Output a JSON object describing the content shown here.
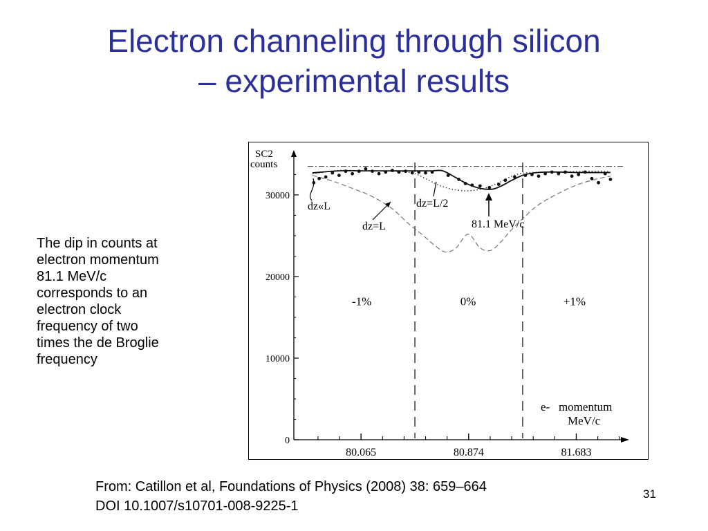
{
  "slide": {
    "title_line1": "Electron channeling through silicon",
    "title_line2": "– experimental results",
    "note_lines": [
      "The dip in counts at",
      "electron momentum",
      "81.1 MeV/c",
      "corresponds to an",
      "electron clock",
      "frequency of two",
      "times the de Broglie",
      "frequency"
    ],
    "citation_line1": "From: Catillon et al, Foundations of Physics (2008) 38: 659–664",
    "citation_line2": "DOI 10.1007/s10701-008-9225-1",
    "page_number": "31"
  },
  "chart_data": {
    "type": "line",
    "ylabel_line1": "SC2",
    "ylabel_line2": "counts",
    "xlabel_line1": "e-   momentum",
    "xlabel_line2": "MeV/c",
    "ylim": [
      0,
      35500
    ],
    "xlim": [
      79.56,
      82.06
    ],
    "yticks": [
      0,
      10000,
      20000,
      30000
    ],
    "ytick_labels": [
      "0",
      "10000",
      "20000",
      "30000"
    ],
    "xtick_labels": [
      {
        "x": 80.065,
        "label": "80.065"
      },
      {
        "x": 80.874,
        "label": "80.874"
      },
      {
        "x": 81.683,
        "label": "81.683"
      }
    ],
    "region_boundaries": [
      80.47,
      81.28
    ],
    "region_labels": [
      {
        "x": 80.07,
        "y": 16500,
        "label": "-1%"
      },
      {
        "x": 80.87,
        "y": 16500,
        "label": "0%"
      },
      {
        "x": 81.67,
        "y": 16500,
        "label": "+1%"
      }
    ],
    "reference_level": 33500,
    "series": [
      {
        "style": "dotted",
        "points": [
          [
            79.7,
            32600
          ],
          [
            79.9,
            33000
          ],
          [
            80.1,
            32950
          ],
          [
            80.3,
            32900
          ],
          [
            80.45,
            32700
          ],
          [
            80.55,
            32000
          ],
          [
            80.65,
            31200
          ],
          [
            80.75,
            30700
          ],
          [
            80.87,
            30500
          ],
          [
            80.99,
            30800
          ],
          [
            81.1,
            31500
          ],
          [
            81.2,
            32300
          ],
          [
            81.3,
            32700
          ],
          [
            81.5,
            32800
          ],
          [
            81.8,
            32900
          ],
          [
            81.94,
            32900
          ]
        ]
      },
      {
        "style": "solid",
        "points": [
          [
            79.7,
            32700
          ],
          [
            79.9,
            32950
          ],
          [
            80.1,
            32950
          ],
          [
            80.3,
            32950
          ],
          [
            80.5,
            32950
          ],
          [
            80.6,
            32950
          ],
          [
            80.68,
            32950
          ],
          [
            80.78,
            32100
          ],
          [
            80.87,
            31300
          ],
          [
            80.96,
            30800
          ],
          [
            81.05,
            30700
          ],
          [
            81.12,
            31100
          ],
          [
            81.2,
            31800
          ],
          [
            81.3,
            32500
          ],
          [
            81.45,
            32800
          ],
          [
            81.7,
            32750
          ],
          [
            81.94,
            32750
          ]
        ]
      },
      {
        "style": "dashed",
        "points": [
          [
            79.7,
            32400
          ],
          [
            79.85,
            31700
          ],
          [
            80.0,
            30800
          ],
          [
            80.15,
            29800
          ],
          [
            80.3,
            28300
          ],
          [
            80.42,
            26500
          ],
          [
            80.52,
            25200
          ],
          [
            80.62,
            23800
          ],
          [
            80.7,
            23000
          ],
          [
            80.78,
            23500
          ],
          [
            80.87,
            25200
          ],
          [
            80.96,
            23500
          ],
          [
            81.04,
            23200
          ],
          [
            81.12,
            24300
          ],
          [
            81.2,
            25800
          ],
          [
            81.3,
            27400
          ],
          [
            81.4,
            28800
          ],
          [
            81.55,
            30200
          ],
          [
            81.7,
            31300
          ],
          [
            81.85,
            32000
          ],
          [
            81.94,
            32300
          ]
        ]
      }
    ],
    "data_points": [
      [
        79.71,
        31500
      ],
      [
        79.75,
        32000
      ],
      [
        79.8,
        32200
      ],
      [
        79.85,
        32700
      ],
      [
        79.9,
        32400
      ],
      [
        79.95,
        32900
      ],
      [
        80.0,
        32600
      ],
      [
        80.05,
        32900
      ],
      [
        80.1,
        33200
      ],
      [
        80.15,
        32900
      ],
      [
        80.2,
        32600
      ],
      [
        80.25,
        32800
      ],
      [
        80.3,
        33000
      ],
      [
        80.35,
        32800
      ],
      [
        80.4,
        32900
      ],
      [
        80.45,
        32700
      ],
      [
        80.5,
        32800
      ],
      [
        80.55,
        32700
      ],
      [
        80.6,
        32800
      ],
      [
        80.72,
        32400
      ],
      [
        80.8,
        31900
      ],
      [
        80.85,
        31400
      ],
      [
        80.9,
        31200
      ],
      [
        80.96,
        31100
      ],
      [
        81.03,
        30900
      ],
      [
        81.1,
        31300
      ],
      [
        81.15,
        31800
      ],
      [
        81.22,
        32200
      ],
      [
        81.3,
        32400
      ],
      [
        81.35,
        32500
      ],
      [
        81.4,
        32300
      ],
      [
        81.45,
        32600
      ],
      [
        81.5,
        32800
      ],
      [
        81.55,
        32600
      ],
      [
        81.6,
        32800
      ],
      [
        81.65,
        32300
      ],
      [
        81.7,
        32500
      ],
      [
        81.75,
        32800
      ],
      [
        81.8,
        32000
      ],
      [
        81.85,
        31500
      ],
      [
        81.9,
        32600
      ],
      [
        81.94,
        31900
      ]
    ],
    "annotations": [
      {
        "id": "dz_much_less_L",
        "text": "dz«L"
      },
      {
        "id": "dz_equals_L",
        "text": "dz=L"
      },
      {
        "id": "dz_equals_L_half",
        "text": "dz=L/2"
      },
      {
        "id": "momentum_marker",
        "text": "81.1 MeV/c"
      }
    ]
  }
}
